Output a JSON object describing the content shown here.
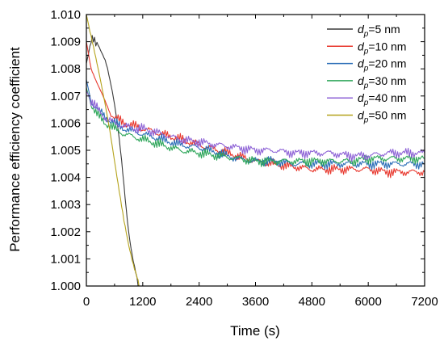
{
  "chart_data": {
    "type": "line",
    "title": "",
    "xlabel": "Time (s)",
    "ylabel": "Performance efficiency coefficient",
    "xlim": [
      0,
      7200
    ],
    "ylim": [
      1.0,
      1.01
    ],
    "xticks": [
      0,
      1200,
      2400,
      3600,
      4800,
      6000,
      7200
    ],
    "xtick_labels": [
      "0",
      "1200",
      "2400",
      "3600",
      "4800",
      "6000",
      "7200"
    ],
    "yticks": [
      1.0,
      1.001,
      1.002,
      1.003,
      1.004,
      1.005,
      1.006,
      1.007,
      1.008,
      1.009,
      1.01
    ],
    "ytick_labels": [
      "1.000",
      "1.001",
      "1.002",
      "1.003",
      "1.004",
      "1.005",
      "1.006",
      "1.007",
      "1.008",
      "1.009",
      "1.010"
    ],
    "grid": false,
    "legend_position": "top-right",
    "series": [
      {
        "name": "dp=5 nm",
        "legend_var": "d",
        "legend_sub": "p",
        "legend_rest": "=5 nm",
        "color": "#3a3a3a",
        "x": [
          0,
          50,
          100,
          150,
          200,
          250,
          300,
          350,
          400,
          450,
          500,
          550,
          600,
          650,
          700,
          750,
          800,
          850,
          900,
          950,
          1000,
          1050,
          1100,
          1130
        ],
        "y": [
          1.0082,
          1.0086,
          1.009,
          1.0091,
          1.009,
          1.0089,
          1.0087,
          1.0085,
          1.0083,
          1.008,
          1.0076,
          1.0072,
          1.0067,
          1.0061,
          1.0054,
          1.0046,
          1.0037,
          1.0028,
          1.002,
          1.0014,
          1.0009,
          1.0005,
          1.0001,
          1.0
        ]
      },
      {
        "name": "dp=10 nm",
        "legend_var": "d",
        "legend_sub": "p",
        "legend_rest": "=10 nm",
        "color": "#e8382e",
        "x": [
          0,
          100,
          200,
          300,
          400,
          500,
          600,
          800,
          1000,
          1200,
          1600,
          2000,
          2400,
          2800,
          3200,
          3600,
          4000,
          4400,
          4800,
          5200,
          5600,
          6000,
          6400,
          6800,
          7200
        ],
        "y": [
          1.009,
          1.008,
          1.0076,
          1.0072,
          1.0068,
          1.0064,
          1.0062,
          1.006,
          1.0059,
          1.0058,
          1.0056,
          1.0054,
          1.0052,
          1.005,
          1.0048,
          1.0046,
          1.0045,
          1.0044,
          1.0043,
          1.0043,
          1.0043,
          1.0043,
          1.0042,
          1.0042,
          1.0042
        ]
      },
      {
        "name": "dp=20 nm",
        "legend_var": "d",
        "legend_sub": "p",
        "legend_rest": "=20 nm",
        "color": "#2d6fb8",
        "x": [
          0,
          100,
          200,
          300,
          400,
          600,
          800,
          1000,
          1200,
          1600,
          2000,
          2400,
          2800,
          3200,
          3600,
          4000,
          4400,
          4800,
          5200,
          5600,
          6000,
          6400,
          6800,
          7200
        ],
        "y": [
          1.0076,
          1.0068,
          1.0066,
          1.0064,
          1.0062,
          1.006,
          1.0058,
          1.0057,
          1.0056,
          1.0054,
          1.0052,
          1.0051,
          1.0049,
          1.0047,
          1.0046,
          1.0046,
          1.0045,
          1.0045,
          1.0045,
          1.0045,
          1.0045,
          1.0045,
          1.0045,
          1.0045
        ]
      },
      {
        "name": "dp=30 nm",
        "legend_var": "d",
        "legend_sub": "p",
        "legend_rest": "=30 nm",
        "color": "#2ea65a",
        "x": [
          0,
          100,
          200,
          300,
          400,
          600,
          800,
          1000,
          1200,
          1600,
          2000,
          2400,
          2800,
          3200,
          3600,
          4000,
          4400,
          4800,
          5200,
          5600,
          6000,
          6400,
          6800,
          7200
        ],
        "y": [
          1.0073,
          1.0067,
          1.0064,
          1.0062,
          1.006,
          1.0058,
          1.0056,
          1.0055,
          1.0054,
          1.0052,
          1.005,
          1.0049,
          1.0048,
          1.0047,
          1.0046,
          1.0046,
          1.0046,
          1.0046,
          1.0046,
          1.0046,
          1.0047,
          1.0047,
          1.0047,
          1.0047
        ]
      },
      {
        "name": "dp=40 nm",
        "legend_var": "d",
        "legend_sub": "p",
        "legend_rest": "=40 nm",
        "color": "#8e63d6",
        "x": [
          0,
          100,
          200,
          300,
          400,
          600,
          800,
          1000,
          1200,
          1600,
          2000,
          2400,
          2800,
          3200,
          3600,
          4000,
          4400,
          4800,
          5200,
          5600,
          6000,
          6400,
          6800,
          7200
        ],
        "y": [
          1.0072,
          1.0068,
          1.0066,
          1.0064,
          1.0062,
          1.006,
          1.0059,
          1.0058,
          1.0058,
          1.0056,
          1.0054,
          1.0053,
          1.0052,
          1.0051,
          1.005,
          1.005,
          1.0049,
          1.0049,
          1.0049,
          1.0048,
          1.0048,
          1.0049,
          1.0049,
          1.0049
        ]
      },
      {
        "name": "dp=50 nm",
        "legend_var": "d",
        "legend_sub": "p",
        "legend_rest": "=50 nm",
        "color": "#b5a31c",
        "x": [
          0,
          50,
          100,
          150,
          200,
          300,
          400,
          500,
          600,
          700,
          800,
          900,
          1000,
          1050,
          1100,
          1120
        ],
        "y": [
          1.01,
          1.0096,
          1.0092,
          1.0088,
          1.0084,
          1.0076,
          1.0067,
          1.0057,
          1.0046,
          1.0035,
          1.0024,
          1.0015,
          1.0008,
          1.0005,
          1.0002,
          1.0
        ]
      }
    ]
  }
}
